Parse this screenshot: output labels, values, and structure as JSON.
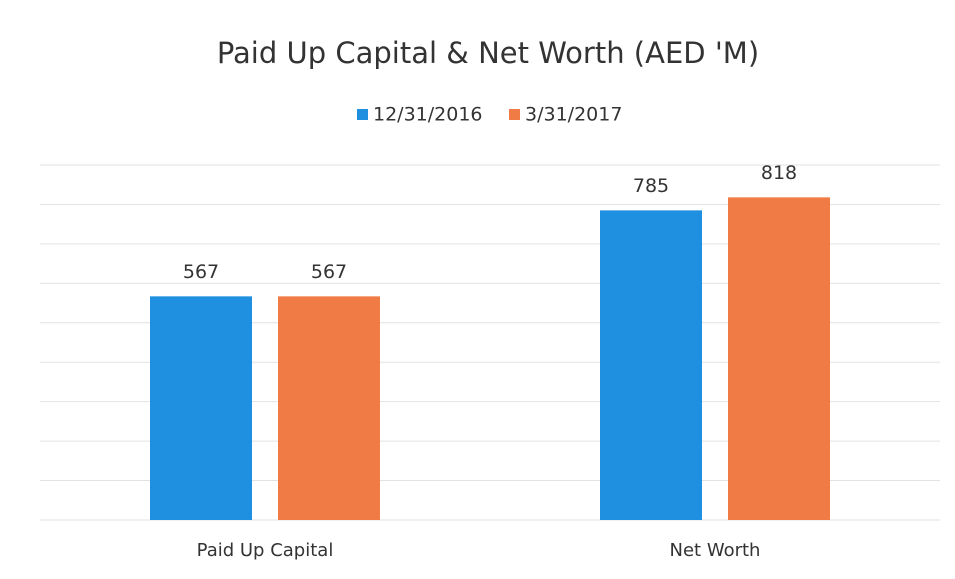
{
  "chart_data": {
    "type": "bar",
    "title": "Paid Up Capital & Net Worth (AED 'M)",
    "categories": [
      "Paid Up Capital",
      "Net Worth"
    ],
    "series": [
      {
        "name": "12/31/2016",
        "color": "#1f8fe0",
        "values": [
          567,
          785
        ]
      },
      {
        "name": "3/31/2017",
        "color": "#f07b45",
        "values": [
          567,
          818
        ]
      }
    ],
    "ylim": [
      0,
      900
    ],
    "yticks": [
      0,
      100,
      200,
      300,
      400,
      500,
      600,
      700,
      800,
      900
    ],
    "grid": true,
    "legend": "top"
  }
}
